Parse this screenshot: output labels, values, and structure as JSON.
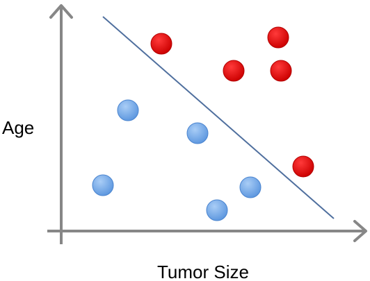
{
  "chart_data": {
    "type": "scatter",
    "xlabel": "Tumor Size",
    "ylabel": "Age",
    "title": "",
    "xlim": [
      0,
      10
    ],
    "ylim": [
      0,
      10
    ],
    "grid": false,
    "legend": "none",
    "series": [
      {
        "color": "#ff0000",
        "points": [
          {
            "x": 3.6,
            "y": 9.0
          },
          {
            "x": 7.8,
            "y": 9.3
          },
          {
            "x": 6.2,
            "y": 7.7
          },
          {
            "x": 7.9,
            "y": 7.7
          },
          {
            "x": 8.7,
            "y": 3.1
          }
        ]
      },
      {
        "color": "#7fb1ea",
        "points": [
          {
            "x": 2.4,
            "y": 5.8
          },
          {
            "x": 4.9,
            "y": 4.7
          },
          {
            "x": 1.5,
            "y": 2.2
          },
          {
            "x": 6.8,
            "y": 2.1
          },
          {
            "x": 5.6,
            "y": 1.0
          }
        ]
      }
    ],
    "annotations": [
      {
        "type": "line",
        "x": [
          1.5,
          9.8
        ],
        "y": [
          10.3,
          0.6
        ],
        "color": "#4f6f9e"
      }
    ]
  }
}
